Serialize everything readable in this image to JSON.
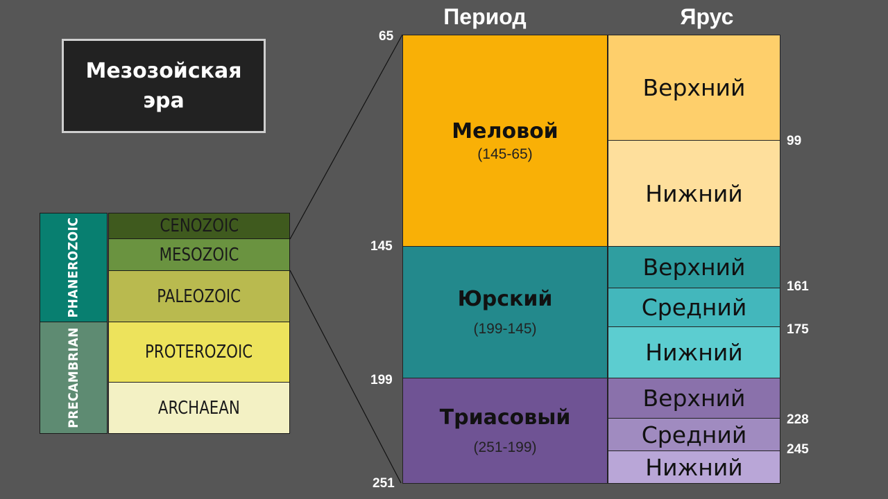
{
  "title": "Мезозойская эра",
  "left_table": {
    "eons": [
      {
        "label": "PHANEROZOIC",
        "color": "#087f70"
      },
      {
        "label": "PRECAMBRIAN",
        "color": "#5e8b72"
      }
    ],
    "eras": [
      {
        "label": "CENOZOIC",
        "color": "#3f5a1e"
      },
      {
        "label": "MESOZOIC",
        "color": "#6a9340"
      },
      {
        "label": "PALEOZOIC",
        "color": "#b9ba4f"
      },
      {
        "label": "PROTEROZOIC",
        "color": "#ede35c"
      },
      {
        "label": "ARCHAEAN",
        "color": "#f3f1c4"
      }
    ]
  },
  "headers": {
    "period": "Период",
    "stage": "Ярус"
  },
  "periods": [
    {
      "name": "Меловой",
      "range": "(145-65)",
      "color": "#f9b006"
    },
    {
      "name": "Юрский",
      "range": "(199-145)",
      "color": "#23898c"
    },
    {
      "name": "Триасовый",
      "range": "(251-199)",
      "color": "#6f5394"
    }
  ],
  "stages": [
    {
      "label": "Верхний",
      "color": "#fecf6b"
    },
    {
      "label": "Нижний",
      "color": "#fedf9c"
    },
    {
      "label": "Верхний",
      "color": "#2f9ea0"
    },
    {
      "label": "Средний",
      "color": "#43b7bc"
    },
    {
      "label": "Нижний",
      "color": "#5ccdd0"
    },
    {
      "label": "Верхний",
      "color": "#8a71ab"
    },
    {
      "label": "Средний",
      "color": "#a08bc0"
    },
    {
      "label": "Нижний",
      "color": "#b9a6d7"
    }
  ],
  "ages_left": [
    "65",
    "145",
    "199",
    "251"
  ],
  "ages_right": [
    "99",
    "161",
    "175",
    "228",
    "245"
  ]
}
